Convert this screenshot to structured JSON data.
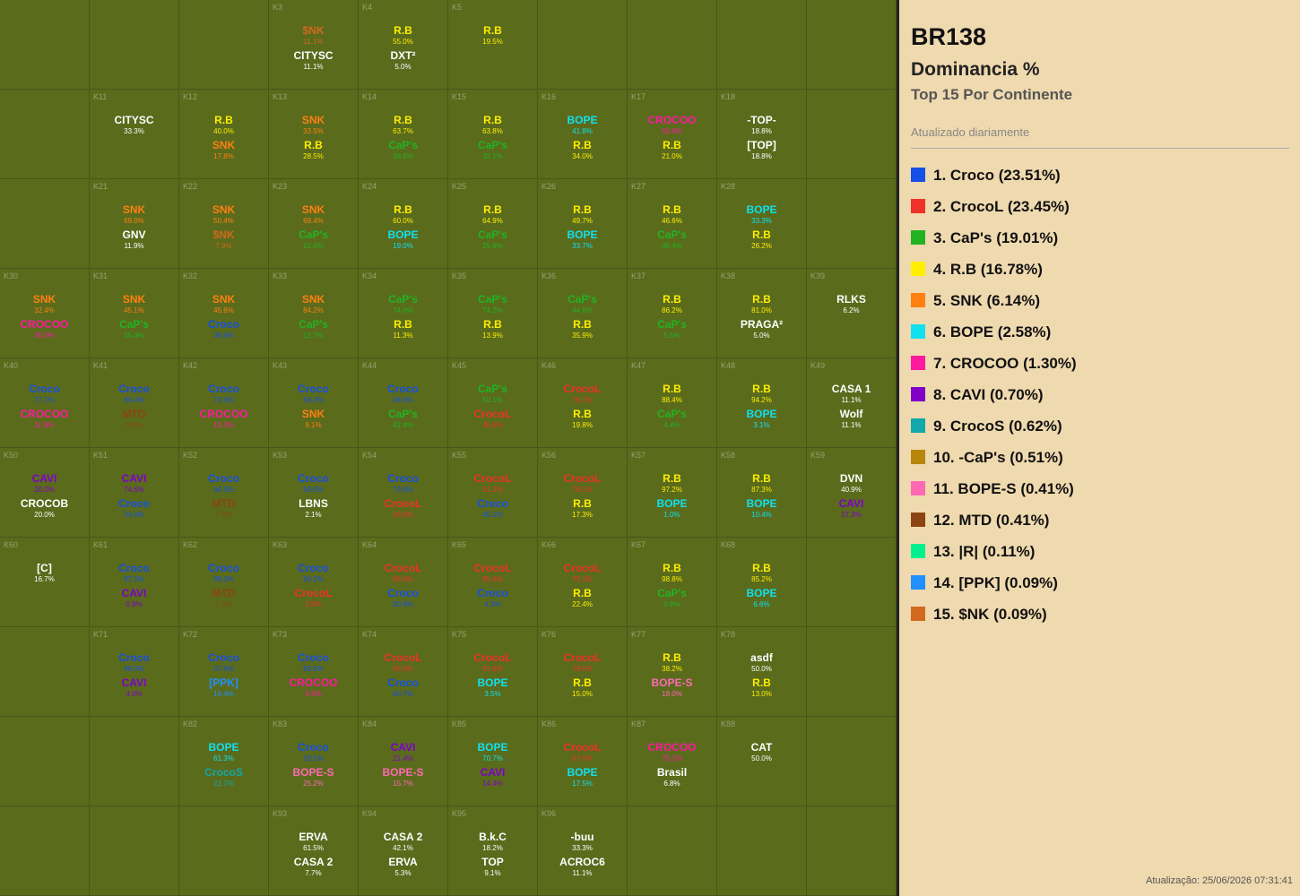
{
  "header": {
    "title": "BR138",
    "subtitle": "Dominancia %",
    "scope": "Top 15 Por Continente",
    "note": "Atualizado diariamente"
  },
  "palette": {
    "Croco": "#1650e6",
    "CrocoL": "#f0302a",
    "CaP's": "#22b322",
    "R.B": "#ffee00",
    "SNK": "#ff8010",
    "BOPE": "#10e0f0",
    "CROCOO": "#ff18a0",
    "CAVI": "#8000c8",
    "CrocoS": "#10a8a8",
    "-CaP's": "#b8860b",
    "BOPE-S": "#ff69b4",
    "MTD": "#8b4513",
    "|R|": "#00f090",
    "[PPK]": "#2090ff",
    "$NK": "#d2691e"
  },
  "legend": [
    {
      "label": "1. Croco (23.51%)",
      "color": "#1650e6"
    },
    {
      "label": "2. CrocoL (23.45%)",
      "color": "#f0302a"
    },
    {
      "label": "3. CaP's (19.01%)",
      "color": "#22b322"
    },
    {
      "label": "4. R.B (16.78%)",
      "color": "#ffee00"
    },
    {
      "label": "5. SNK (6.14%)",
      "color": "#ff8010"
    },
    {
      "label": "6. BOPE (2.58%)",
      "color": "#10e0f0"
    },
    {
      "label": "7. CROCOO (1.30%)",
      "color": "#ff18a0"
    },
    {
      "label": "8. CAVI (0.70%)",
      "color": "#8000c8"
    },
    {
      "label": "9. CrocoS (0.62%)",
      "color": "#10a8a8"
    },
    {
      "label": "10. -CaP's (0.51%)",
      "color": "#b8860b"
    },
    {
      "label": "11. BOPE-S (0.41%)",
      "color": "#ff69b4"
    },
    {
      "label": "12. MTD (0.41%)",
      "color": "#8b4513"
    },
    {
      "label": "13. |R| (0.11%)",
      "color": "#00f090"
    },
    {
      "label": "14. [PPK] (0.09%)",
      "color": "#2090ff"
    },
    {
      "label": "15. $NK (0.09%)",
      "color": "#d2691e"
    }
  ],
  "cells": [
    {
      "id": "K3",
      "entries": [
        {
          "name": "$NK",
          "pct": "11.1%"
        },
        {
          "name": "CITYSC",
          "pct": "11.1%"
        }
      ]
    },
    {
      "id": "K4",
      "entries": [
        {
          "name": "R.B",
          "pct": "55.0%"
        },
        {
          "name": "DXT²",
          "pct": "5.0%"
        }
      ]
    },
    {
      "id": "K5",
      "entries": [
        {
          "name": "R.B",
          "pct": "19.5%"
        }
      ]
    },
    {
      "id": "K11",
      "entries": [
        {
          "name": "CITYSC",
          "pct": "33.3%"
        }
      ]
    },
    {
      "id": "K12",
      "entries": [
        {
          "name": "R.B",
          "pct": "40.0%"
        },
        {
          "name": "SNK",
          "pct": "17.8%"
        }
      ]
    },
    {
      "id": "K13",
      "entries": [
        {
          "name": "SNK",
          "pct": "33.5%"
        },
        {
          "name": "R.B",
          "pct": "28.5%"
        }
      ]
    },
    {
      "id": "K14",
      "entries": [
        {
          "name": "R.B",
          "pct": "63.7%"
        },
        {
          "name": "CaP's",
          "pct": "28.5%"
        }
      ]
    },
    {
      "id": "K15",
      "entries": [
        {
          "name": "R.B",
          "pct": "63.8%"
        },
        {
          "name": "CaP's",
          "pct": "32.1%"
        }
      ]
    },
    {
      "id": "K16",
      "entries": [
        {
          "name": "BOPE",
          "pct": "41.8%"
        },
        {
          "name": "R.B",
          "pct": "34.0%"
        }
      ]
    },
    {
      "id": "K17",
      "entries": [
        {
          "name": "CROCOO",
          "pct": "63.8%"
        },
        {
          "name": "R.B",
          "pct": "21.0%"
        }
      ]
    },
    {
      "id": "K18",
      "entries": [
        {
          "name": "-TOP-",
          "pct": "18.8%"
        },
        {
          "name": "[TOP]",
          "pct": "18.8%"
        }
      ]
    },
    {
      "id": "K21",
      "entries": [
        {
          "name": "SNK",
          "pct": "69.0%"
        },
        {
          "name": "GNV",
          "pct": "11.9%"
        }
      ]
    },
    {
      "id": "K22",
      "entries": [
        {
          "name": "SNK",
          "pct": "50.4%"
        },
        {
          "name": "$NK",
          "pct": "7.9%"
        }
      ]
    },
    {
      "id": "K23",
      "entries": [
        {
          "name": "SNK",
          "pct": "69.4%"
        },
        {
          "name": "CaP's",
          "pct": "22.4%"
        }
      ]
    },
    {
      "id": "K24",
      "entries": [
        {
          "name": "R.B",
          "pct": "60.0%"
        },
        {
          "name": "BOPE",
          "pct": "19.0%"
        }
      ]
    },
    {
      "id": "K25",
      "entries": [
        {
          "name": "R.B",
          "pct": "64.9%"
        },
        {
          "name": "CaP's",
          "pct": "25.6%"
        }
      ]
    },
    {
      "id": "K26",
      "entries": [
        {
          "name": "R.B",
          "pct": "49.7%"
        },
        {
          "name": "BOPE",
          "pct": "33.7%"
        }
      ]
    },
    {
      "id": "K27",
      "entries": [
        {
          "name": "R.B",
          "pct": "46.6%"
        },
        {
          "name": "CaP's",
          "pct": "36.4%"
        }
      ]
    },
    {
      "id": "K28",
      "entries": [
        {
          "name": "BOPE",
          "pct": "33.3%"
        },
        {
          "name": "R.B",
          "pct": "26.2%"
        }
      ]
    },
    {
      "id": "K30",
      "entries": [
        {
          "name": "SNK",
          "pct": "32.4%"
        },
        {
          "name": "CROCOO",
          "pct": "30.0%"
        }
      ]
    },
    {
      "id": "K31",
      "entries": [
        {
          "name": "SNK",
          "pct": "45.1%"
        },
        {
          "name": "CaP's",
          "pct": "35.4%"
        }
      ]
    },
    {
      "id": "K32",
      "entries": [
        {
          "name": "SNK",
          "pct": "45.6%"
        },
        {
          "name": "Croco",
          "pct": "38.6%"
        }
      ]
    },
    {
      "id": "K33",
      "entries": [
        {
          "name": "SNK",
          "pct": "84.2%"
        },
        {
          "name": "CaP's",
          "pct": "12.7%"
        }
      ]
    },
    {
      "id": "K34",
      "entries": [
        {
          "name": "CaP's",
          "pct": "74.6%"
        },
        {
          "name": "R.B",
          "pct": "11.3%"
        }
      ]
    },
    {
      "id": "K35",
      "entries": [
        {
          "name": "CaP's",
          "pct": "74.2%"
        },
        {
          "name": "R.B",
          "pct": "13.9%"
        }
      ]
    },
    {
      "id": "K36",
      "entries": [
        {
          "name": "CaP's",
          "pct": "44.6%"
        },
        {
          "name": "R.B",
          "pct": "35.9%"
        }
      ]
    },
    {
      "id": "K37",
      "entries": [
        {
          "name": "R.B",
          "pct": "86.2%"
        },
        {
          "name": "CaP's",
          "pct": "5.5%"
        }
      ]
    },
    {
      "id": "K38",
      "entries": [
        {
          "name": "R.B",
          "pct": "81.0%"
        },
        {
          "name": "PRAGA²",
          "pct": "5.0%"
        }
      ]
    },
    {
      "id": "K39",
      "entries": [
        {
          "name": "RLKS",
          "pct": "6.2%"
        }
      ]
    },
    {
      "id": "K40",
      "entries": [
        {
          "name": "Croco",
          "pct": "77.1%"
        },
        {
          "name": "CROCOO",
          "pct": "11.8%"
        }
      ]
    },
    {
      "id": "K41",
      "entries": [
        {
          "name": "Croco",
          "pct": "80.4%"
        },
        {
          "name": "MTD",
          "pct": "9.9%"
        }
      ]
    },
    {
      "id": "K42",
      "entries": [
        {
          "name": "Croco",
          "pct": "73.6%"
        },
        {
          "name": "CROCOO",
          "pct": "10.2%"
        }
      ]
    },
    {
      "id": "K43",
      "entries": [
        {
          "name": "Croco",
          "pct": "68.2%"
        },
        {
          "name": "SNK",
          "pct": "9.1%"
        }
      ]
    },
    {
      "id": "K44",
      "entries": [
        {
          "name": "Croco",
          "pct": "48.6%"
        },
        {
          "name": "CaP's",
          "pct": "42.4%"
        }
      ]
    },
    {
      "id": "K45",
      "entries": [
        {
          "name": "CaP's",
          "pct": "50.1%"
        },
        {
          "name": "CrocoL",
          "pct": "46.6%"
        }
      ]
    },
    {
      "id": "K46",
      "entries": [
        {
          "name": "CrocoL",
          "pct": "76.1%"
        },
        {
          "name": "R.B",
          "pct": "19.8%"
        }
      ]
    },
    {
      "id": "K47",
      "entries": [
        {
          "name": "R.B",
          "pct": "88.4%"
        },
        {
          "name": "CaP's",
          "pct": "4.4%"
        }
      ]
    },
    {
      "id": "K48",
      "entries": [
        {
          "name": "R.B",
          "pct": "94.2%"
        },
        {
          "name": "BOPE",
          "pct": "3.1%"
        }
      ]
    },
    {
      "id": "K49",
      "entries": [
        {
          "name": "CASA 1",
          "pct": "11.1%"
        },
        {
          "name": "Wolf",
          "pct": "11.1%"
        }
      ]
    },
    {
      "id": "K50",
      "entries": [
        {
          "name": "CAVI",
          "pct": "20.0%"
        },
        {
          "name": "CROCOB",
          "pct": "20.0%"
        }
      ]
    },
    {
      "id": "K51",
      "entries": [
        {
          "name": "CAVI",
          "pct": "74.6%"
        },
        {
          "name": "Croco",
          "pct": "24.0%"
        }
      ]
    },
    {
      "id": "K52",
      "entries": [
        {
          "name": "Croco",
          "pct": "84.9%"
        },
        {
          "name": "MTD",
          "pct": "7.2%"
        }
      ]
    },
    {
      "id": "K53",
      "entries": [
        {
          "name": "Croco",
          "pct": "96.0%"
        },
        {
          "name": "LBNS",
          "pct": "2.1%"
        }
      ]
    },
    {
      "id": "K54",
      "entries": [
        {
          "name": "Croco",
          "pct": "73.6%"
        },
        {
          "name": "CrocoL",
          "pct": "26.0%"
        }
      ]
    },
    {
      "id": "K55",
      "entries": [
        {
          "name": "CrocoL",
          "pct": "51.2%"
        },
        {
          "name": "Croco",
          "pct": "45.1%"
        }
      ]
    },
    {
      "id": "K56",
      "entries": [
        {
          "name": "CrocoL",
          "pct": "78.1%"
        },
        {
          "name": "R.B",
          "pct": "17.3%"
        }
      ]
    },
    {
      "id": "K57",
      "entries": [
        {
          "name": "R.B",
          "pct": "97.2%"
        },
        {
          "name": "BOPE",
          "pct": "1.0%"
        }
      ]
    },
    {
      "id": "K58",
      "entries": [
        {
          "name": "R.B",
          "pct": "87.3%"
        },
        {
          "name": "BOPE",
          "pct": "10.4%"
        }
      ]
    },
    {
      "id": "K59",
      "entries": [
        {
          "name": "DVN",
          "pct": "40.9%"
        },
        {
          "name": "CAVI",
          "pct": "27.3%"
        }
      ]
    },
    {
      "id": "K60",
      "entries": [
        {
          "name": "[C]",
          "pct": "16.7%"
        }
      ]
    },
    {
      "id": "K61",
      "entries": [
        {
          "name": "Croco",
          "pct": "97.0%"
        },
        {
          "name": "CAVI",
          "pct": "0.9%"
        }
      ]
    },
    {
      "id": "K62",
      "entries": [
        {
          "name": "Croco",
          "pct": "98.2%"
        },
        {
          "name": "MTD",
          "pct": "1.7%"
        }
      ]
    },
    {
      "id": "K63",
      "entries": [
        {
          "name": "Croco",
          "pct": "96.2%"
        },
        {
          "name": "CrocoL",
          "pct": "3.8%"
        }
      ]
    },
    {
      "id": "K64",
      "entries": [
        {
          "name": "CrocoL",
          "pct": "69.6%"
        },
        {
          "name": "Croco",
          "pct": "30.9%"
        }
      ]
    },
    {
      "id": "K65",
      "entries": [
        {
          "name": "CrocoL",
          "pct": "95.6%"
        },
        {
          "name": "Croco",
          "pct": "4.3%"
        }
      ]
    },
    {
      "id": "K66",
      "entries": [
        {
          "name": "CrocoL",
          "pct": "75.1%"
        },
        {
          "name": "R.B",
          "pct": "22.4%"
        }
      ]
    },
    {
      "id": "K67",
      "entries": [
        {
          "name": "R.B",
          "pct": "98.8%"
        },
        {
          "name": "CaP's",
          "pct": "0.8%"
        }
      ]
    },
    {
      "id": "K68",
      "entries": [
        {
          "name": "R.B",
          "pct": "85.2%"
        },
        {
          "name": "BOPE",
          "pct": "6.6%"
        }
      ]
    },
    {
      "id": "K71",
      "entries": [
        {
          "name": "Croco",
          "pct": "96.0%"
        },
        {
          "name": "CAVI",
          "pct": "4.0%"
        }
      ]
    },
    {
      "id": "K72",
      "entries": [
        {
          "name": "Croco",
          "pct": "57.6%"
        },
        {
          "name": "[PPK]",
          "pct": "16.4%"
        }
      ]
    },
    {
      "id": "K73",
      "entries": [
        {
          "name": "Croco",
          "pct": "86.8%"
        },
        {
          "name": "CROCOO",
          "pct": "9.3%"
        }
      ]
    },
    {
      "id": "K74",
      "entries": [
        {
          "name": "CrocoL",
          "pct": "59.2%"
        },
        {
          "name": "Croco",
          "pct": "40.7%"
        }
      ]
    },
    {
      "id": "K75",
      "entries": [
        {
          "name": "CrocoL",
          "pct": "91.6%"
        },
        {
          "name": "BOPE",
          "pct": "3.5%"
        }
      ]
    },
    {
      "id": "K76",
      "entries": [
        {
          "name": "CrocoL",
          "pct": "79.5%"
        },
        {
          "name": "R.B",
          "pct": "15.0%"
        }
      ]
    },
    {
      "id": "K77",
      "entries": [
        {
          "name": "R.B",
          "pct": "38.2%"
        },
        {
          "name": "BOPE-S",
          "pct": "18.0%"
        }
      ]
    },
    {
      "id": "K78",
      "entries": [
        {
          "name": "asdf",
          "pct": "50.0%"
        },
        {
          "name": "R.B",
          "pct": "13.0%"
        }
      ]
    },
    {
      "id": "K82",
      "entries": [
        {
          "name": "BOPE",
          "pct": "61.3%"
        },
        {
          "name": "CrocoS",
          "pct": "22.7%"
        }
      ]
    },
    {
      "id": "K83",
      "entries": [
        {
          "name": "Croco",
          "pct": "28.1%"
        },
        {
          "name": "BOPE-S",
          "pct": "25.2%"
        }
      ]
    },
    {
      "id": "K84",
      "entries": [
        {
          "name": "CAVI",
          "pct": "21.4%"
        },
        {
          "name": "BOPE-S",
          "pct": "15.7%"
        }
      ]
    },
    {
      "id": "K85",
      "entries": [
        {
          "name": "BOPE",
          "pct": "70.7%"
        },
        {
          "name": "CAVI",
          "pct": "14.4%"
        }
      ]
    },
    {
      "id": "K86",
      "entries": [
        {
          "name": "CrocoL",
          "pct": "67.6%"
        },
        {
          "name": "BOPE",
          "pct": "17.5%"
        }
      ]
    },
    {
      "id": "K87",
      "entries": [
        {
          "name": "CROCOO",
          "pct": "75.1%"
        },
        {
          "name": "Brasil",
          "pct": "6.8%"
        }
      ]
    },
    {
      "id": "K88",
      "entries": [
        {
          "name": "CAT",
          "pct": "50.0%"
        }
      ]
    },
    {
      "id": "K93",
      "entries": [
        {
          "name": "ERVA",
          "pct": "61.5%"
        },
        {
          "name": "CASA 2",
          "pct": "7.7%"
        }
      ]
    },
    {
      "id": "K94",
      "entries": [
        {
          "name": "CASA 2",
          "pct": "42.1%"
        },
        {
          "name": "ERVA",
          "pct": "5.3%"
        }
      ]
    },
    {
      "id": "K95",
      "entries": [
        {
          "name": "B.k.C",
          "pct": "18.2%"
        },
        {
          "name": "TOP",
          "pct": "9.1%"
        }
      ]
    },
    {
      "id": "K96",
      "entries": [
        {
          "name": "-buu",
          "pct": "33.3%"
        },
        {
          "name": "ACROC6",
          "pct": "11.1%"
        }
      ]
    }
  ],
  "footer": "Atualização: 25/06/2026 07:31:41"
}
